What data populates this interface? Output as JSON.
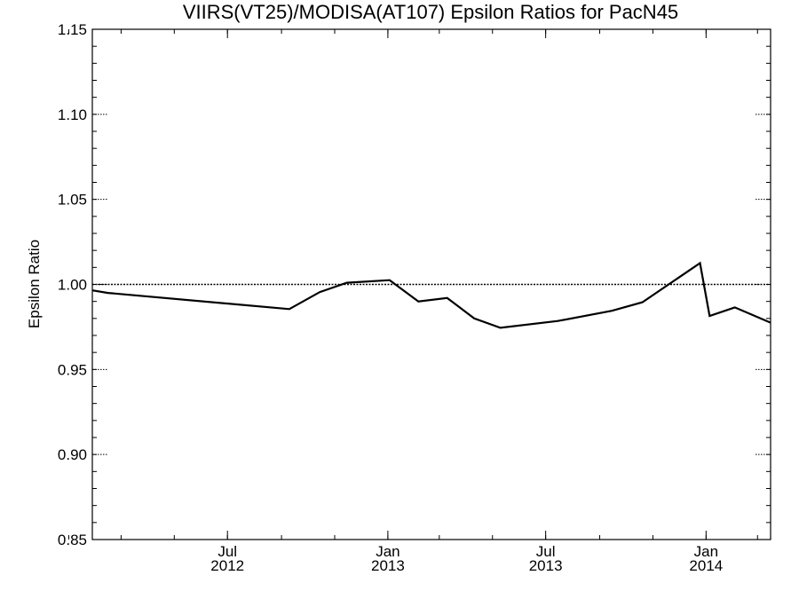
{
  "chart_data": {
    "type": "line",
    "title": "VIIRS(VT25)/MODISA(AT107)  Epsilon Ratios for PacN45",
    "xlabel": "",
    "ylabel": "Epsilon Ratio",
    "ylim": [
      0.85,
      1.15
    ],
    "xlim": [
      "2012-01-28",
      "2014-03-16"
    ],
    "y_ticks": [
      0.85,
      0.9,
      0.95,
      1.0,
      1.05,
      1.1,
      1.15
    ],
    "y_tick_labels": [
      "0.85",
      "0.90",
      "0.95",
      "1.00",
      "1.05",
      "1.10",
      "1.15"
    ],
    "x_ticks": [
      {
        "date": "2012-07-01",
        "month": "Jul",
        "year": "2012"
      },
      {
        "date": "2013-01-01",
        "month": "Jan",
        "year": "2013"
      },
      {
        "date": "2013-07-01",
        "month": "Jul",
        "year": "2013"
      },
      {
        "date": "2014-01-01",
        "month": "Jan",
        "year": "2014"
      }
    ],
    "reference_line": {
      "y": 1.0,
      "style": "dotted"
    },
    "grid": false,
    "series": [
      {
        "x": [
          "2012-01-28",
          "2012-02-15",
          "2012-09-10",
          "2012-10-15",
          "2012-11-15",
          "2013-01-03",
          "2013-02-05",
          "2013-03-10",
          "2013-04-10",
          "2013-05-10",
          "2013-07-15",
          "2013-09-15",
          "2013-10-20",
          "2013-12-25",
          "2014-01-05",
          "2014-02-03",
          "2014-03-16"
        ],
        "y": [
          0.9965,
          0.995,
          0.9855,
          0.9955,
          1.001,
          1.0025,
          0.99,
          0.992,
          0.98,
          0.9745,
          0.9785,
          0.9845,
          0.9895,
          1.0125,
          0.9815,
          0.9865,
          0.9775
        ]
      }
    ]
  }
}
